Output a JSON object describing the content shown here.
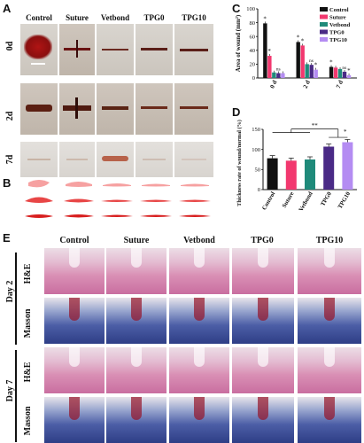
{
  "panels": {
    "a": "A",
    "b": "B",
    "c": "C",
    "d": "D",
    "e": "E"
  },
  "groups": [
    "Control",
    "Suture",
    "Vetbond",
    "TPG0",
    "TPG10"
  ],
  "panelA": {
    "rows": [
      "0d",
      "2d",
      "7d"
    ]
  },
  "panelE": {
    "day_labels": [
      "Day 2",
      "Day 7"
    ],
    "stain_labels": [
      "H&E",
      "Masson",
      "H&E",
      "Masson"
    ]
  },
  "colors": {
    "Control": "#111111",
    "Suture": "#f2386f",
    "Vetbond": "#1f8a7a",
    "TPG0": "#4a2a86",
    "TPG10": "#b48cf2"
  },
  "chart_data": [
    {
      "type": "bar",
      "panel": "C",
      "ylabel": "Area of wound (mm²)",
      "categories": [
        "0 d",
        "2 d",
        "7 d"
      ],
      "ylim": [
        0,
        100
      ],
      "yticks": [
        0,
        20,
        40,
        60,
        80,
        100
      ],
      "legend_position": "top-right",
      "series": [
        {
          "name": "Control",
          "values": [
            79,
            52,
            16
          ]
        },
        {
          "name": "Suture",
          "values": [
            32,
            47,
            15
          ]
        },
        {
          "name": "Vetbond",
          "values": [
            8,
            20,
            13
          ]
        },
        {
          "name": "TPG0",
          "values": [
            7,
            19,
            9
          ]
        },
        {
          "name": "TPG10",
          "values": [
            7,
            12,
            4
          ]
        }
      ],
      "annotations": [
        "*",
        "*",
        "ns",
        "*",
        "*",
        "ns",
        "*",
        "*",
        "ns",
        "*"
      ]
    },
    {
      "type": "bar",
      "panel": "D",
      "ylabel": "Thickness rate of wound/normal (%)",
      "categories": [
        "Control",
        "Suture",
        "Vetbond",
        "TPG0",
        "TPG10"
      ],
      "ylim": [
        0,
        150
      ],
      "yticks": [
        0,
        50,
        100,
        150
      ],
      "values": [
        78,
        72,
        75,
        107,
        118
      ],
      "annotations": [
        "**",
        "*"
      ]
    }
  ]
}
